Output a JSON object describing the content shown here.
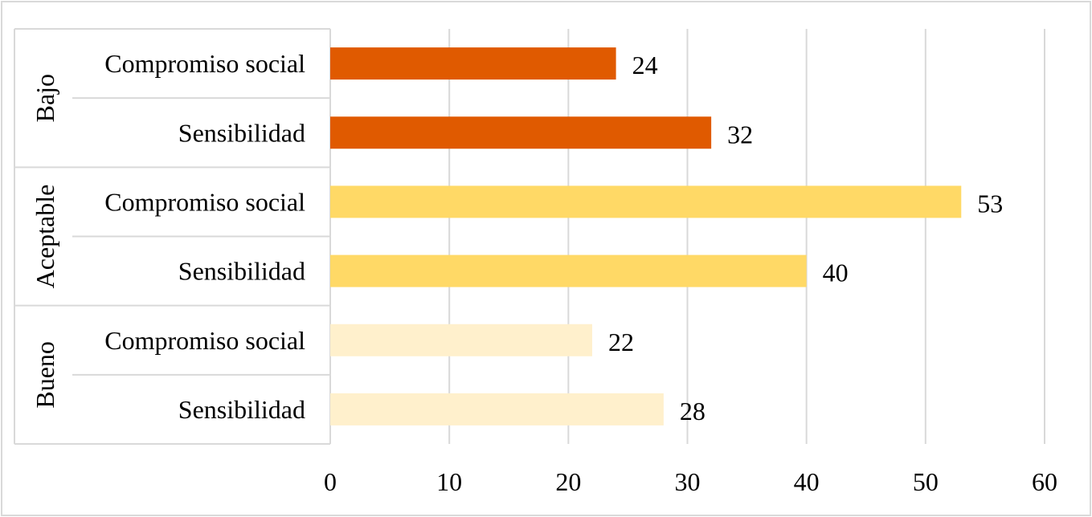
{
  "chart_data": {
    "type": "bar",
    "orientation": "horizontal",
    "groups": [
      {
        "label": "Bajo",
        "color": "#e05a00",
        "items": [
          {
            "label": "Compromiso social",
            "value": 24
          },
          {
            "label": "Sensibilidad",
            "value": 32
          }
        ]
      },
      {
        "label": "Aceptable",
        "color": "#ffd966",
        "items": [
          {
            "label": "Compromiso social",
            "value": 53
          },
          {
            "label": "Sensibilidad",
            "value": 40
          }
        ]
      },
      {
        "label": "Bueno",
        "color": "#fff0cc",
        "items": [
          {
            "label": "Compromiso social",
            "value": 22
          },
          {
            "label": "Sensibilidad",
            "value": 28
          }
        ]
      }
    ],
    "xlim": [
      0,
      60
    ],
    "xticks": [
      0,
      10,
      20,
      30,
      40,
      50,
      60
    ],
    "grid": "vertical",
    "legend": "none",
    "data_labels": true
  }
}
